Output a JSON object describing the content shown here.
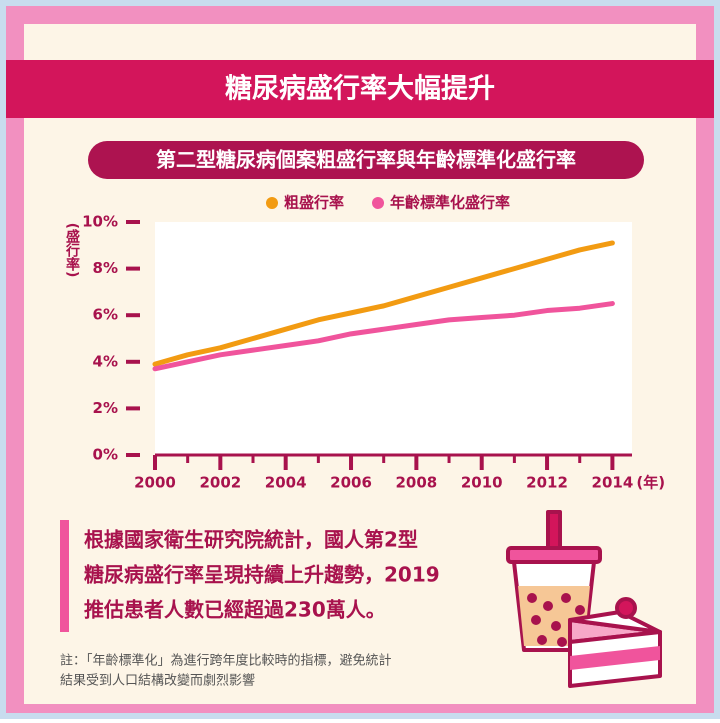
{
  "chart_data": {
    "type": "line",
    "title": "糖尿病盛行率大幅提升",
    "subtitle": "第二型糖尿病個案粗盛行率與年齡標準化盛行率",
    "y_label": "(盛行率)",
    "x_label": "(年)",
    "x": [
      2000,
      2001,
      2002,
      2003,
      2004,
      2005,
      2006,
      2007,
      2008,
      2009,
      2010,
      2011,
      2012,
      2013,
      2014
    ],
    "series": [
      {
        "name": "粗盛行率",
        "color": "#f29b12",
        "values": [
          3.9,
          4.3,
          4.6,
          5.0,
          5.4,
          5.8,
          6.1,
          6.4,
          6.8,
          7.2,
          7.6,
          8.0,
          8.4,
          8.8,
          9.1
        ]
      },
      {
        "name": "年齡標準化盛行率",
        "color": "#f0549c",
        "values": [
          3.7,
          4.0,
          4.3,
          4.5,
          4.7,
          4.9,
          5.2,
          5.4,
          5.6,
          5.8,
          5.9,
          6.0,
          6.2,
          6.3,
          6.5
        ]
      }
    ],
    "xlim": [
      2000,
      2014.6
    ],
    "xticks": [
      2000,
      2002,
      2004,
      2006,
      2008,
      2010,
      2012,
      2014
    ],
    "x_minor_ticks": [
      2001,
      2003,
      2005,
      2007,
      2009,
      2011,
      2013
    ],
    "ylim": [
      0,
      10
    ],
    "yticks": [
      {
        "value": 0,
        "label": "0%"
      },
      {
        "value": 2,
        "label": "2%"
      },
      {
        "value": 4,
        "label": "4%"
      },
      {
        "value": 6,
        "label": "6%"
      },
      {
        "value": 8,
        "label": "8%"
      },
      {
        "value": 10,
        "label": "10%"
      }
    ],
    "legend": "top",
    "grid": false
  },
  "summary": {
    "lines": [
      "根據國家衛生研究院統計，國人第2型",
      "糖尿病盛行率呈現持續上升趨勢，2019",
      "推估患者人數已經超過230萬人。"
    ]
  },
  "note": {
    "lines": [
      "註：「年齡標準化」為進行跨年度比較時的指標，避免統計",
      "結果受到人口結構改變而劇烈影響"
    ]
  }
}
